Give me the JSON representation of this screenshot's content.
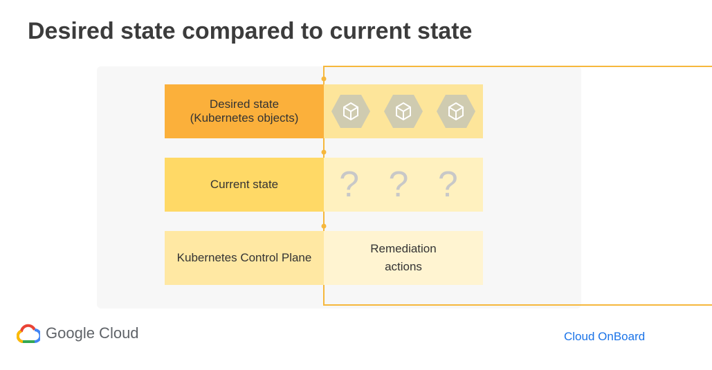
{
  "title": "Desired state compared to current state",
  "rows": {
    "desired": {
      "label_line1": "Desired state",
      "label_line2": "(Kubernetes objects)"
    },
    "current": {
      "label": "Current state",
      "value": "? ? ?"
    },
    "control": {
      "label": "Kubernetes Control Plane",
      "value_line1": "Remediation",
      "value_line2": "actions"
    }
  },
  "icons": [
    "kubernetes-object-icon",
    "kubernetes-object-icon",
    "kubernetes-object-icon"
  ],
  "footer": {
    "brand": "Google Cloud",
    "event": "Cloud OnBoard"
  },
  "colors": {
    "accent_orange": "#fbb03b",
    "accent_yellow": "#ffd966",
    "loop_line": "#f6b73c",
    "link_blue": "#1a73e8"
  }
}
